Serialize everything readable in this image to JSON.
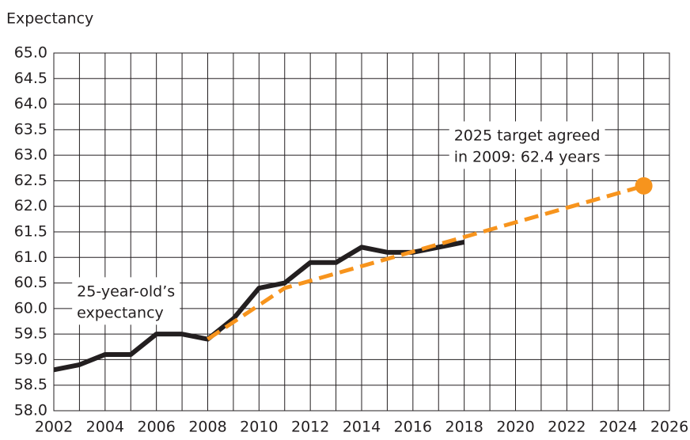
{
  "chart_data": {
    "type": "line",
    "y_axis_label": "Expectancy",
    "xlim": [
      2002,
      2026
    ],
    "xticks": [
      2002,
      2004,
      2006,
      2008,
      2010,
      2012,
      2014,
      2016,
      2018,
      2020,
      2022,
      2024,
      2026
    ],
    "xminorticks": [
      2003,
      2005,
      2007,
      2009,
      2011,
      2013,
      2015,
      2017,
      2019,
      2021,
      2023,
      2025
    ],
    "ylim": [
      58,
      65
    ],
    "yticks": [
      {
        "value": 58,
        "label": "58.0"
      },
      {
        "value": 58.5,
        "label": "58.5"
      },
      {
        "value": 59,
        "label": "59.0"
      },
      {
        "value": 59.5,
        "label": "59.5"
      },
      {
        "value": 60,
        "label": "60.0"
      },
      {
        "value": 60.5,
        "label": "60.5"
      },
      {
        "value": 61,
        "label": "61.0"
      },
      {
        "value": 61.5,
        "label": "61.5"
      },
      {
        "value": 62,
        "label": "62.0"
      },
      {
        "value": 62.5,
        "label": "62.5"
      },
      {
        "value": 63,
        "label": "63.0"
      },
      {
        "value": 63.5,
        "label": "63.5"
      },
      {
        "value": 64,
        "label": "64.0"
      },
      {
        "value": 64.5,
        "label": "64.5"
      },
      {
        "value": 65,
        "label": "65.0"
      }
    ],
    "grid": true,
    "series": [
      {
        "name": "25-year-old's expectancy",
        "color": "#231f20",
        "dashed": false,
        "x": [
          2002,
          2003,
          2004,
          2005,
          2006,
          2007,
          2008,
          2009,
          2010,
          2011,
          2012,
          2013,
          2014,
          2015,
          2016,
          2017,
          2018
        ],
        "values": [
          58.8,
          58.9,
          59.1,
          59.1,
          59.5,
          59.5,
          59.4,
          59.8,
          60.4,
          60.5,
          60.9,
          60.9,
          61.2,
          61.1,
          61.1,
          61.2,
          61.3
        ]
      },
      {
        "name": "2025 target",
        "color": "#f7941d",
        "dashed": true,
        "end_marker": true,
        "x": [
          2008,
          2011,
          2025
        ],
        "values": [
          59.4,
          60.4,
          62.4
        ]
      }
    ],
    "annotations": [
      {
        "lines": [
          "25-year-old’s",
          "expectancy"
        ],
        "x": 2002.9,
        "y": 60.55
      },
      {
        "lines": [
          "2025 target agreed",
          "in 2009: 62.4 years"
        ],
        "x": 2017.6,
        "y": 63.6
      }
    ]
  }
}
